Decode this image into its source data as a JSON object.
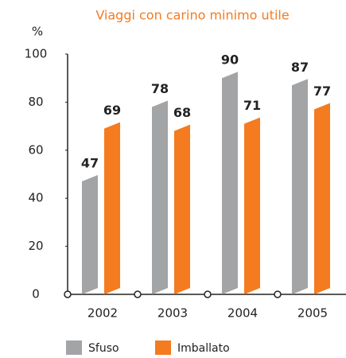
{
  "chart_data": {
    "type": "bar",
    "title": "Viaggi con carino minimo utile",
    "y_label": "%",
    "categories": [
      "2002",
      "2003",
      "2004",
      "2005"
    ],
    "series": [
      {
        "name": "Sfuso",
        "color": "#a2a4a6",
        "values": [
          47,
          78,
          90,
          87
        ]
      },
      {
        "name": "Imballato",
        "color": "#f47b20",
        "values": [
          69,
          68,
          71,
          77
        ]
      }
    ],
    "ylim": [
      0,
      100
    ],
    "yticks": [
      0,
      20,
      40,
      60,
      80,
      100
    ],
    "legend": "bottom"
  }
}
